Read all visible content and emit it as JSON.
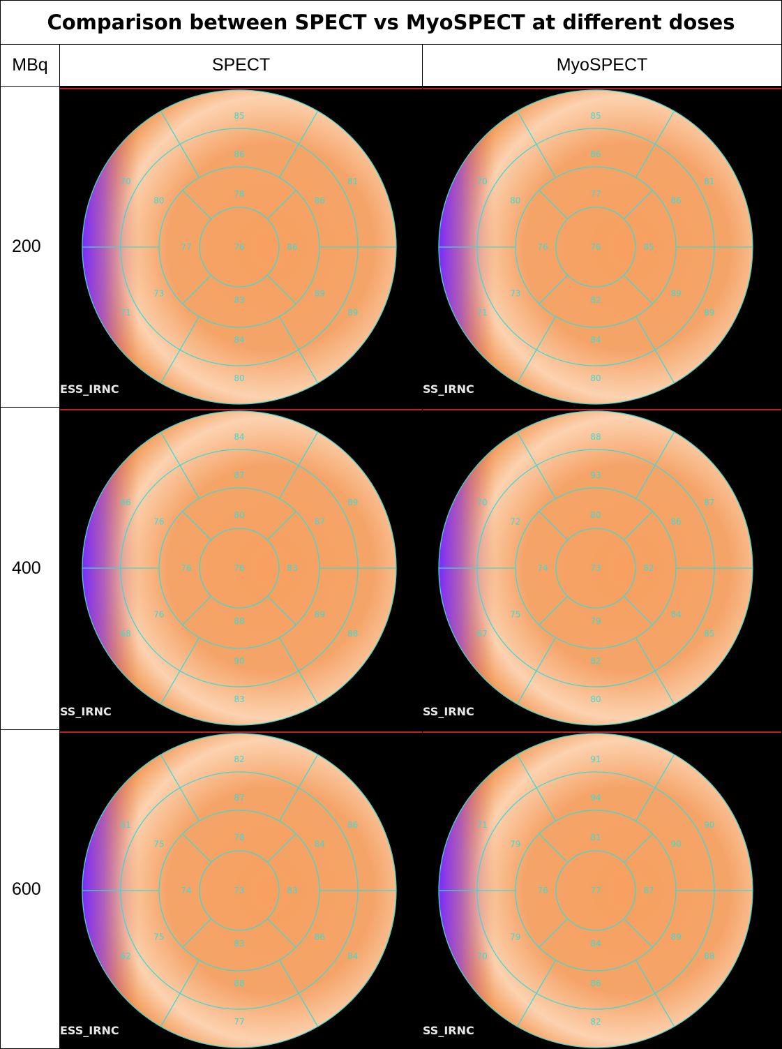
{
  "title": "Comparison between SPECT vs MyoSPECT at different doses",
  "header": {
    "dose": "MBq",
    "spect": "SPECT",
    "myospect": "MyoSPECT"
  },
  "rows": [
    {
      "dose": 200,
      "spect": {
        "caption": "ESS_IRNC",
        "basal": [
          85,
          81,
          89,
          80,
          71,
          70
        ],
        "mid": [
          86,
          86,
          89,
          84,
          73,
          80
        ],
        "apical": [
          78,
          86,
          83,
          77
        ],
        "apex": 76
      },
      "myospect": {
        "caption": "SS_IRNC",
        "basal": [
          85,
          81,
          89,
          80,
          71,
          70
        ],
        "mid": [
          86,
          86,
          89,
          84,
          73,
          80
        ],
        "apical": [
          77,
          85,
          82,
          76
        ],
        "apex": 76
      }
    },
    {
      "dose": 400,
      "spect": {
        "caption": "SS_IRNC",
        "basal": [
          84,
          89,
          88,
          83,
          68,
          66
        ],
        "mid": [
          87,
          87,
          89,
          90,
          76,
          76
        ],
        "apical": [
          80,
          83,
          88,
          76
        ],
        "apex": 76
      },
      "myospect": {
        "caption": "SS_IRNC",
        "basal": [
          88,
          87,
          85,
          80,
          67,
          70
        ],
        "mid": [
          93,
          86,
          84,
          82,
          75,
          72
        ],
        "apical": [
          80,
          82,
          79,
          74
        ],
        "apex": 73
      }
    },
    {
      "dose": 600,
      "spect": {
        "caption": "ESS_IRNC",
        "basal": [
          82,
          86,
          84,
          77,
          62,
          61
        ],
        "mid": [
          87,
          84,
          86,
          88,
          75,
          75
        ],
        "apical": [
          78,
          83,
          83,
          74
        ],
        "apex": 73
      },
      "myospect": {
        "caption": "SS_IRNC",
        "basal": [
          91,
          90,
          88,
          82,
          70,
          71
        ],
        "mid": [
          94,
          90,
          89,
          86,
          79,
          79
        ],
        "apical": [
          81,
          87,
          84,
          76
        ],
        "apex": 77
      }
    }
  ]
}
